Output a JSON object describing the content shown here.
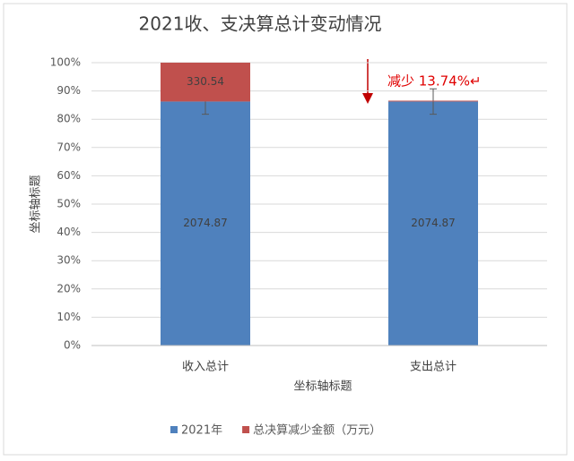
{
  "chart_data": {
    "type": "bar",
    "stacked": true,
    "title": "2021收、支决算总计变动情况",
    "x_label": "坐标轴标题",
    "y_label": "坐标轴标题",
    "categories": [
      "收入总计",
      "支出总计"
    ],
    "series": [
      {
        "name": "2021年",
        "color": "#4f81bd",
        "values": [
          86.26,
          86.26
        ],
        "value_labels": [
          "2074.87",
          "2074.87"
        ],
        "errors": [
          4.5,
          4.5
        ]
      },
      {
        "name": "总决算减少金额（万元）",
        "color": "#c0504d",
        "values": [
          13.74,
          0.3
        ],
        "value_labels": [
          "330.54",
          null
        ]
      }
    ],
    "ylim": [
      0,
      100
    ],
    "yticks": [
      {
        "value": 0,
        "label": "0%"
      },
      {
        "value": 10,
        "label": "10%"
      },
      {
        "value": 20,
        "label": "20%"
      },
      {
        "value": 30,
        "label": "30%"
      },
      {
        "value": 40,
        "label": "40%"
      },
      {
        "value": 50,
        "label": "50%"
      },
      {
        "value": 60,
        "label": "60%"
      },
      {
        "value": 70,
        "label": "70%"
      },
      {
        "value": 80,
        "label": "80%"
      },
      {
        "value": 90,
        "label": "90%"
      },
      {
        "value": 100,
        "label": "100%"
      }
    ],
    "grid": true,
    "legend": "bottom",
    "annotation": "减少 13.74%↵"
  }
}
